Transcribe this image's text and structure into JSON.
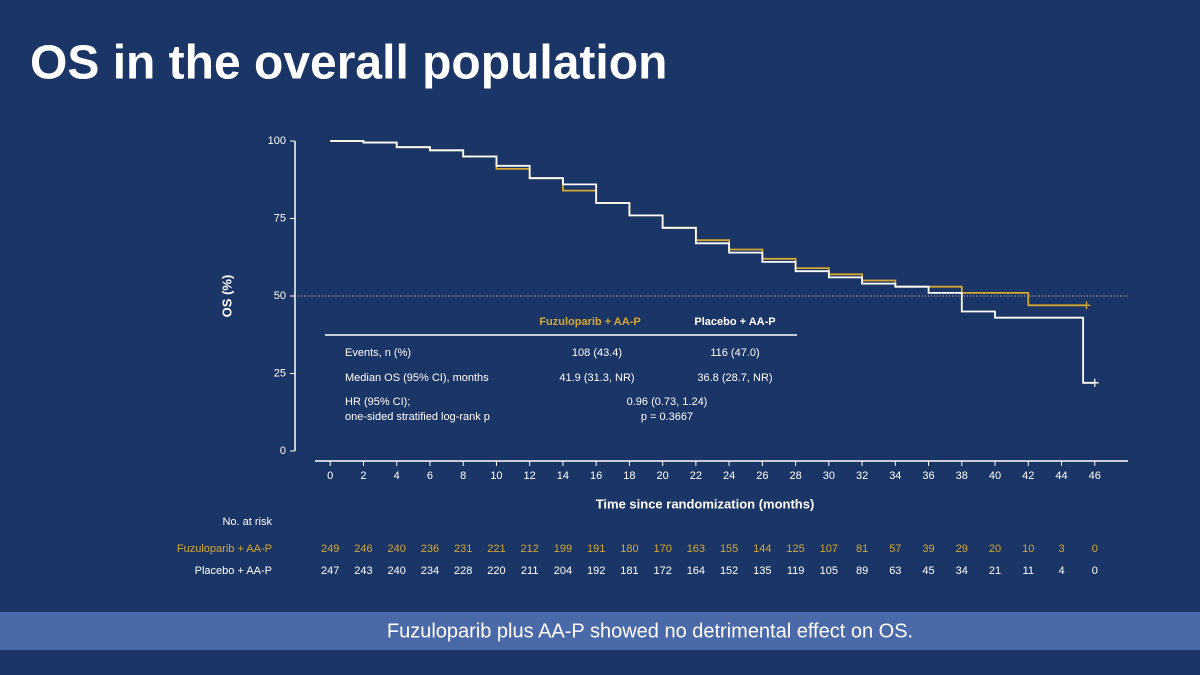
{
  "chart_data": {
    "type": "km",
    "title": "OS in the overall population",
    "y_label": "OS (%)",
    "x_label": "Time since randomization (months)",
    "xlim": [
      -2,
      48
    ],
    "xticks": [
      0,
      2,
      4,
      6,
      8,
      10,
      12,
      14,
      16,
      18,
      20,
      22,
      24,
      26,
      28,
      30,
      32,
      34,
      36,
      38,
      40,
      42,
      44,
      46
    ],
    "ylim": [
      0,
      100
    ],
    "yticks": [
      0,
      25,
      50,
      75,
      100
    ],
    "reference_line": 50,
    "series": [
      {
        "name": "Fuzuloparib + AA-P",
        "color": "#d4a830",
        "x": [
          0,
          2,
          4,
          6,
          8,
          10,
          12,
          14,
          16,
          18,
          20,
          22,
          24,
          26,
          28,
          30,
          32,
          34,
          36,
          38,
          40,
          42,
          44,
          45.5
        ],
        "values": [
          100,
          99.5,
          98,
          97,
          95,
          91,
          88,
          84,
          80,
          76,
          72,
          68,
          65,
          62,
          59,
          57,
          55,
          53,
          53,
          51,
          51,
          47,
          47,
          47
        ],
        "at_risk": [
          249,
          246,
          240,
          236,
          231,
          221,
          212,
          199,
          191,
          180,
          170,
          163,
          155,
          144,
          125,
          107,
          81,
          57,
          39,
          29,
          20,
          10,
          3,
          0
        ]
      },
      {
        "name": "Placebo + AA-P",
        "color": "#ffffff",
        "x": [
          0,
          2,
          4,
          6,
          8,
          10,
          12,
          14,
          16,
          18,
          20,
          22,
          24,
          26,
          28,
          30,
          32,
          34,
          36,
          38,
          40,
          42,
          44,
          45.3,
          46
        ],
        "values": [
          100,
          99.5,
          98,
          97,
          95,
          92,
          88,
          86,
          80,
          76,
          72,
          67,
          64,
          61,
          58,
          56,
          54,
          53,
          51,
          45,
          43,
          43,
          43,
          22,
          22
        ],
        "at_risk": [
          247,
          243,
          240,
          234,
          228,
          220,
          211,
          204,
          192,
          181,
          172,
          164,
          152,
          135,
          119,
          105,
          89,
          63,
          45,
          34,
          21,
          11,
          4,
          0
        ]
      }
    ],
    "at_risk_label": "No. at risk",
    "stats_table": {
      "columns": [
        "Fuzuloparib + AA-P",
        "Placebo + AA-P"
      ],
      "rows": [
        {
          "label": "Events, n (%)",
          "cells": [
            "108 (43.4)",
            "116 (47.0)"
          ]
        },
        {
          "label": "Median OS (95% CI), months",
          "cells": [
            "41.9 (31.3, NR)",
            "36.8 (28.7, NR)"
          ]
        },
        {
          "label": [
            "HR (95% CI);",
            "one-sided stratified log-rank p"
          ],
          "merged": [
            "0.96 (0.73, 1.24)",
            "p = 0.3667"
          ]
        }
      ]
    },
    "banner": "Fuzuloparib plus AA-P showed no detrimental effect on OS."
  }
}
